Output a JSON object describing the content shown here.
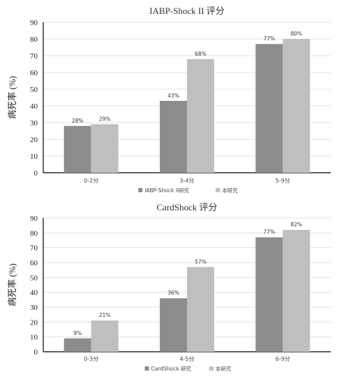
{
  "chart_data": [
    {
      "type": "bar",
      "title": "IABP-Shock II 评分",
      "ylabel": "病死率 (%)",
      "xlabel": "",
      "categories": [
        "0-2分",
        "3-4分",
        "5-9分"
      ],
      "ylim": [
        0,
        90
      ],
      "yticks": [
        0,
        10,
        20,
        30,
        40,
        50,
        60,
        70,
        80,
        90
      ],
      "series": [
        {
          "name": "IABP-Shock II研究",
          "values": [
            28,
            43,
            77
          ],
          "labels": [
            "28%",
            "43%",
            "77%"
          ],
          "color": "#8c8c8c"
        },
        {
          "name": "本研究",
          "values": [
            29,
            68,
            80
          ],
          "labels": [
            "29%",
            "68%",
            "80%"
          ],
          "color": "#bfbfbf"
        }
      ],
      "grid": true,
      "legend": "bottom"
    },
    {
      "type": "bar",
      "title": "CardShock 评分",
      "ylabel": "病死率 (%)",
      "xlabel": "",
      "categories": [
        "0-3分",
        "4-5分",
        "6-9分"
      ],
      "ylim": [
        0,
        90
      ],
      "yticks": [
        0,
        10,
        20,
        30,
        40,
        50,
        60,
        70,
        80,
        90
      ],
      "series": [
        {
          "name": "CardShock 研究",
          "values": [
            9,
            36,
            77
          ],
          "labels": [
            "9%",
            "36%",
            "77%"
          ],
          "color": "#8c8c8c"
        },
        {
          "name": "本研究",
          "values": [
            21,
            57,
            82
          ],
          "labels": [
            "21%",
            "57%",
            "82%"
          ],
          "color": "#bfbfbf"
        }
      ],
      "grid": true,
      "legend": "bottom"
    }
  ]
}
